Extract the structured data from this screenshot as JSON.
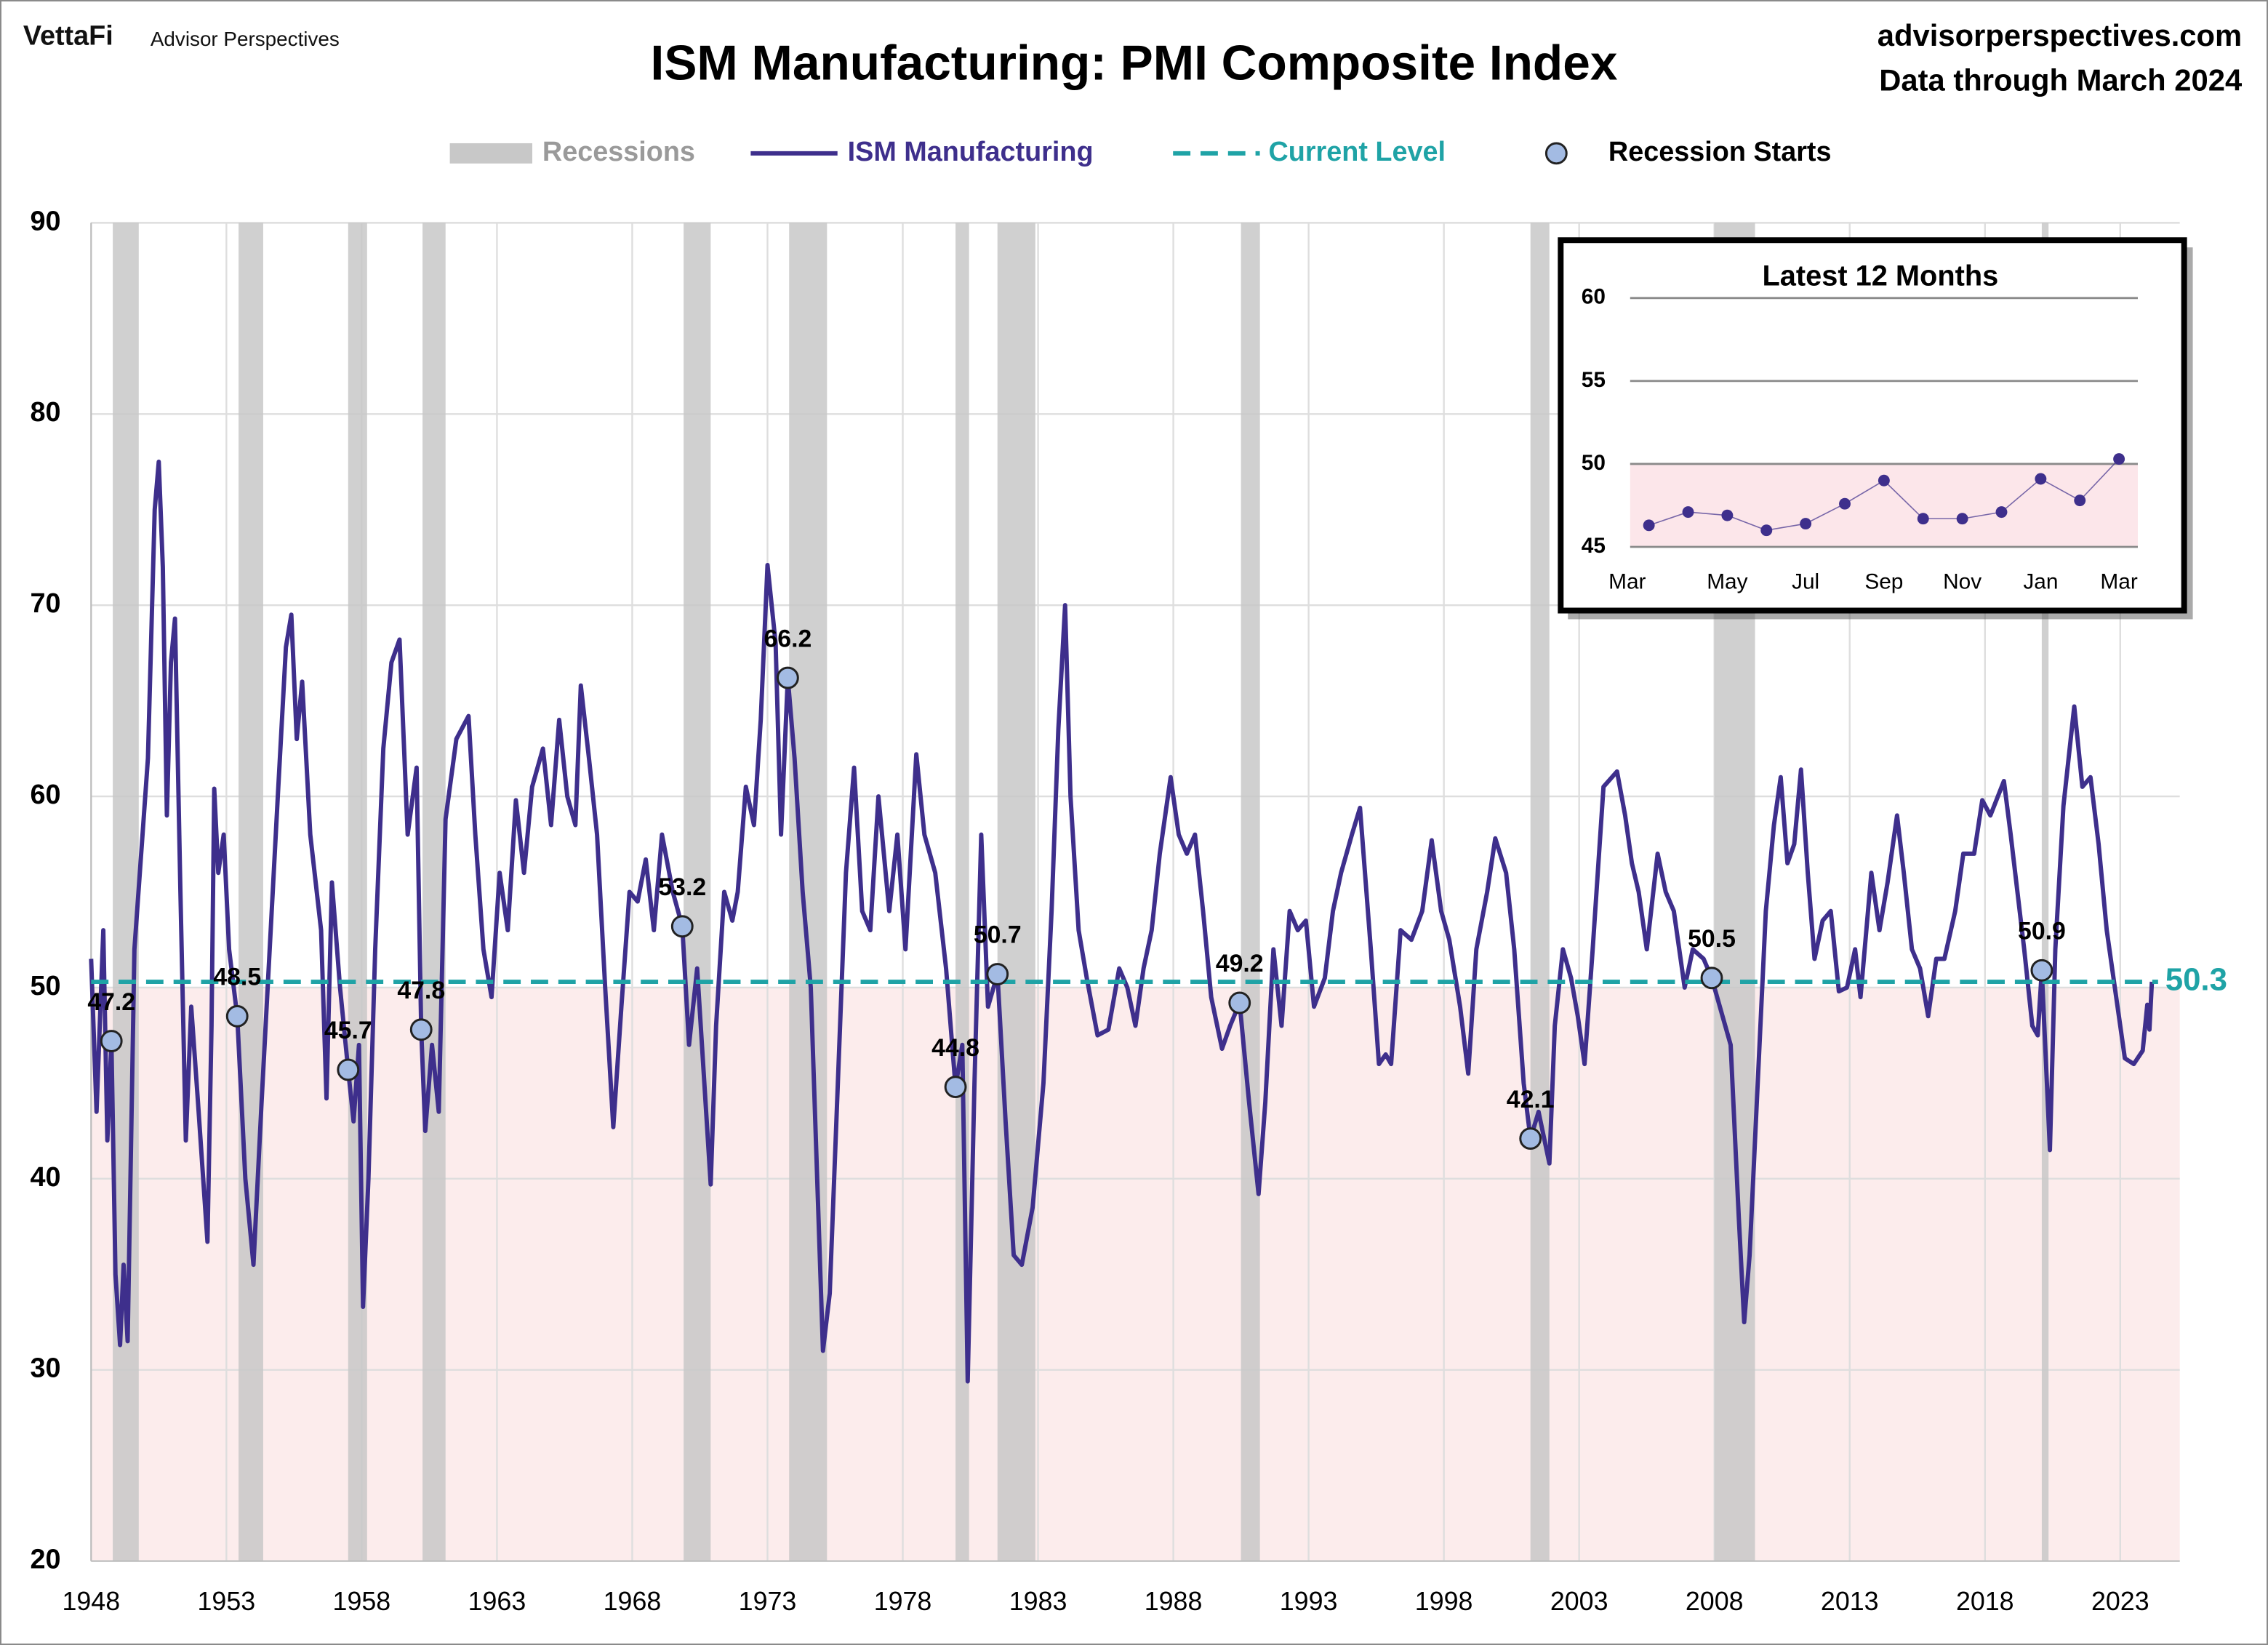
{
  "chart_data": [
    {
      "type": "line",
      "title": "ISM Manufacturing: PMI Composite Index",
      "logo": "VettaFi",
      "publisher": "Advisor Perspectives",
      "website": "advisorperspectives.com",
      "data_note": "Data through March 2024",
      "legend": "top",
      "grid": true,
      "xlim": [
        1948,
        2025.2
      ],
      "ylim": [
        20,
        90
      ],
      "xticks": [
        1948,
        1953,
        1958,
        1963,
        1968,
        1973,
        1978,
        1983,
        1988,
        1993,
        1998,
        2003,
        2008,
        2013,
        2018,
        2023
      ],
      "yticks": [
        20,
        30,
        40,
        50,
        60,
        70,
        80,
        90
      ],
      "shade_below": 50,
      "x": [
        1948.0,
        1948.2,
        1948.45,
        1948.6,
        1948.75,
        1948.9,
        1949.07,
        1949.2,
        1949.35,
        1949.6,
        1949.9,
        1950.1,
        1950.35,
        1950.5,
        1950.65,
        1950.8,
        1950.95,
        1951.1,
        1951.3,
        1951.5,
        1951.7,
        1951.95,
        1952.3,
        1952.45,
        1952.55,
        1952.7,
        1952.9,
        1953.1,
        1953.4,
        1953.7,
        1954.0,
        1954.3,
        1954.6,
        1954.9,
        1955.2,
        1955.4,
        1955.6,
        1955.8,
        1956.1,
        1956.5,
        1956.7,
        1956.9,
        1957.2,
        1957.5,
        1957.7,
        1957.9,
        1958.05,
        1958.25,
        1958.5,
        1958.8,
        1959.1,
        1959.4,
        1959.7,
        1960.03,
        1960.2,
        1960.35,
        1960.6,
        1960.85,
        1961.1,
        1961.5,
        1961.95,
        1962.2,
        1962.5,
        1962.8,
        1963.1,
        1963.4,
        1963.7,
        1964.0,
        1964.3,
        1964.7,
        1965.0,
        1965.3,
        1965.6,
        1965.9,
        1966.1,
        1966.4,
        1966.7,
        1967.0,
        1967.3,
        1967.6,
        1967.9,
        1968.2,
        1968.5,
        1968.8,
        1969.1,
        1969.5,
        1969.85,
        1970.1,
        1970.4,
        1970.9,
        1971.1,
        1971.4,
        1971.7,
        1971.9,
        1972.2,
        1972.5,
        1972.75,
        1973.0,
        1973.3,
        1973.5,
        1973.75,
        1974.0,
        1974.3,
        1974.6,
        1975.05,
        1975.3,
        1975.6,
        1975.9,
        1976.2,
        1976.5,
        1976.8,
        1977.1,
        1977.5,
        1977.8,
        1978.1,
        1978.5,
        1978.8,
        1979.2,
        1979.6,
        1979.95,
        1980.2,
        1980.4,
        1980.65,
        1980.9,
        1981.15,
        1981.5,
        1981.8,
        1982.1,
        1982.4,
        1982.8,
        1983.2,
        1983.5,
        1983.75,
        1984.0,
        1984.2,
        1984.5,
        1984.8,
        1985.2,
        1985.6,
        1986.0,
        1986.3,
        1986.6,
        1986.9,
        1987.2,
        1987.5,
        1987.9,
        1988.2,
        1988.5,
        1988.8,
        1989.1,
        1989.4,
        1989.8,
        1990.1,
        1990.45,
        1990.8,
        1991.15,
        1991.4,
        1991.7,
        1992.0,
        1992.3,
        1992.6,
        1992.9,
        1993.2,
        1993.6,
        1993.9,
        1994.2,
        1994.6,
        1994.9,
        1995.3,
        1995.6,
        1995.85,
        1996.05,
        1996.4,
        1996.8,
        1997.2,
        1997.55,
        1997.9,
        1998.2,
        1998.6,
        1998.9,
        1999.2,
        1999.6,
        1999.9,
        2000.3,
        2000.6,
        2000.95,
        2001.2,
        2001.5,
        2001.9,
        2002.1,
        2002.4,
        2002.7,
        2002.95,
        2003.2,
        2003.5,
        2003.9,
        2004.4,
        2004.7,
        2004.95,
        2005.2,
        2005.5,
        2005.9,
        2006.2,
        2006.5,
        2006.9,
        2007.2,
        2007.6,
        2007.9,
        2008.2,
        2008.6,
        2008.9,
        2009.1,
        2009.3,
        2009.6,
        2009.9,
        2010.2,
        2010.45,
        2010.7,
        2010.95,
        2011.2,
        2011.45,
        2011.7,
        2012.0,
        2012.3,
        2012.6,
        2012.9,
        2013.2,
        2013.4,
        2013.8,
        2014.1,
        2014.4,
        2014.75,
        2015.0,
        2015.3,
        2015.6,
        2015.9,
        2016.2,
        2016.5,
        2016.9,
        2017.2,
        2017.6,
        2017.9,
        2018.2,
        2018.7,
        2018.95,
        2019.2,
        2019.45,
        2019.75,
        2019.95,
        2020.1,
        2020.4,
        2020.6,
        2020.9,
        2021.3,
        2021.6,
        2021.9,
        2022.2,
        2022.5,
        2022.9,
        2023.17,
        2023.5,
        2023.83,
        2024.0,
        2024.08,
        2024.17
      ],
      "series": [
        {
          "name": "ISM Manufacturing",
          "color": "#3e2f8c",
          "values": [
            51.5,
            43.5,
            53,
            42,
            47.2,
            35,
            31.3,
            35.5,
            31.5,
            52,
            58,
            62,
            75,
            77.5,
            72,
            59,
            67,
            69.3,
            55,
            42,
            49,
            44,
            36.7,
            48,
            60.4,
            56,
            58,
            52,
            48.5,
            40,
            35.5,
            44,
            52,
            60,
            67.8,
            69.5,
            63,
            66,
            58,
            53,
            44.2,
            55.5,
            50,
            45.7,
            43,
            47,
            33.3,
            40,
            52,
            62.5,
            67,
            68.2,
            58,
            61.5,
            47.8,
            42.5,
            47,
            43.5,
            58.8,
            63,
            64.2,
            58,
            52,
            49.5,
            56,
            53,
            59.8,
            56,
            60.5,
            62.5,
            58.5,
            64,
            60,
            58.5,
            65.8,
            62,
            58,
            50,
            42.7,
            49,
            55,
            54.5,
            56.7,
            53,
            58,
            55,
            53.2,
            47,
            51,
            39.7,
            48,
            55,
            53.5,
            55,
            60.5,
            58.5,
            64,
            72.1,
            68,
            58,
            66.2,
            62,
            55,
            50,
            31,
            34,
            45,
            56,
            61.5,
            54,
            53,
            60,
            54,
            58,
            52,
            62.2,
            58,
            56,
            51,
            44.8,
            47,
            29.4,
            45,
            58,
            49,
            50.7,
            43,
            36,
            35.5,
            38.5,
            45,
            54,
            63.5,
            70,
            60,
            53,
            50.5,
            47.5,
            47.8,
            51,
            50,
            48,
            51,
            53,
            57,
            61,
            58,
            57,
            58,
            54,
            49.5,
            46.8,
            48,
            49.2,
            44,
            39.2,
            44,
            52,
            48,
            54,
            53,
            53.5,
            49,
            50.5,
            54,
            56,
            58,
            59.4,
            52,
            46,
            46.5,
            46,
            53,
            52.5,
            54,
            57.7,
            54,
            52.5,
            49,
            45.5,
            52,
            55,
            57.8,
            56,
            52,
            45,
            42.1,
            43.5,
            40.8,
            48,
            52,
            50.5,
            48.5,
            46,
            52,
            60.5,
            61.3,
            59,
            56.5,
            55,
            52,
            57,
            55,
            54,
            50,
            52,
            51.5,
            50.5,
            49,
            47,
            38,
            32.5,
            36,
            45,
            54,
            58.5,
            61,
            56.5,
            57.5,
            61.4,
            56,
            51.5,
            53.5,
            54,
            49.8,
            50,
            52,
            49.5,
            56,
            53,
            55.5,
            59,
            56,
            52,
            51,
            48.5,
            51.5,
            51.5,
            54,
            57,
            57,
            59.8,
            59,
            60.8,
            58,
            55,
            52,
            48,
            47.5,
            50.9,
            41.5,
            52,
            59.5,
            64.7,
            60.5,
            61,
            57.5,
            53,
            49,
            46.3,
            46,
            46.7,
            49.1,
            47.8,
            50.3
          ]
        }
      ],
      "recessions": {
        "name": "Recessions",
        "color": "#c8c8c8",
        "periods": [
          [
            1948.8,
            1949.76
          ],
          [
            1953.45,
            1954.36
          ],
          [
            1957.5,
            1958.2
          ],
          [
            1960.25,
            1961.1
          ],
          [
            1969.9,
            1970.9
          ],
          [
            1973.8,
            1975.2
          ],
          [
            1979.95,
            1980.45
          ],
          [
            1981.5,
            1982.9
          ],
          [
            1990.5,
            1991.2
          ],
          [
            2001.2,
            2001.9
          ],
          [
            2008.0,
            2009.5
          ],
          [
            2020.1,
            2020.35
          ]
        ]
      },
      "reference_line": {
        "name": "Current Level",
        "value": 50.3,
        "color": "#1fa3a6"
      },
      "recession_starts": {
        "name": "Recession Starts",
        "color": "#a3bbe3",
        "x": [
          1948.75,
          1953.4,
          1957.5,
          1960.2,
          1969.85,
          1973.75,
          1979.95,
          1981.5,
          1990.45,
          2001.2,
          2007.9,
          2020.1
        ],
        "values": [
          47.2,
          48.5,
          45.7,
          47.8,
          53.2,
          66.2,
          44.8,
          50.7,
          49.2,
          42.1,
          50.5,
          50.9
        ]
      }
    },
    {
      "type": "line",
      "title": "Latest 12 Months",
      "categories": [
        "Mar",
        null,
        "May",
        null,
        "Jul",
        null,
        "Sep",
        null,
        "Nov",
        null,
        "Jan",
        null,
        "Mar"
      ],
      "values": [
        46.3,
        47.1,
        46.9,
        46.0,
        46.4,
        47.6,
        49.0,
        46.7,
        46.7,
        47.1,
        49.1,
        47.8,
        50.3
      ],
      "color": "#3e2f8c",
      "ylim": [
        45,
        60
      ],
      "yticks": [
        45,
        50,
        55,
        60
      ],
      "shade_below": 50,
      "grid": true
    }
  ]
}
